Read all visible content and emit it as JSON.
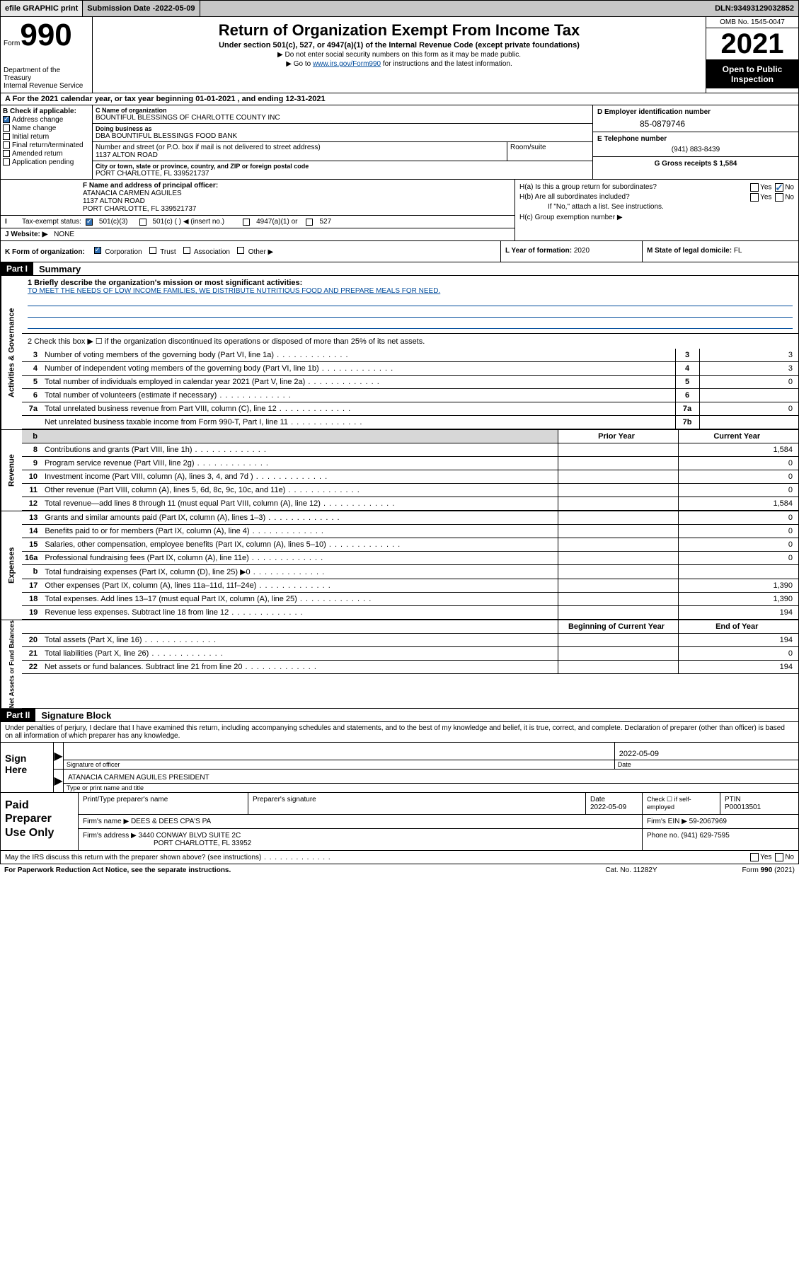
{
  "top": {
    "efile": "efile GRAPHIC print",
    "sub_date_lbl": "Submission Date - ",
    "sub_date": "2022-05-09",
    "dln_lbl": "DLN: ",
    "dln": "93493129032852"
  },
  "header": {
    "form_word": "Form",
    "form_num": "990",
    "title": "Return of Organization Exempt From Income Tax",
    "subtitle": "Under section 501(c), 527, or 4947(a)(1) of the Internal Revenue Code (except private foundations)",
    "hint1": "▶ Do not enter social security numbers on this form as it may be made public.",
    "hint2_pre": "▶ Go to ",
    "hint2_link": "www.irs.gov/Form990",
    "hint2_post": " for instructions and the latest information.",
    "dept1": "Department of the Treasury",
    "dept2": "Internal Revenue Service",
    "omb": "OMB No. 1545-0047",
    "year": "2021",
    "open": "Open to Public Inspection"
  },
  "period": "A For the 2021 calendar year, or tax year beginning 01-01-2021   , and ending 12-31-2021",
  "box_b": {
    "lbl": "B Check if applicable:",
    "items": [
      {
        "label": "Address change",
        "checked": true
      },
      {
        "label": "Name change",
        "checked": false
      },
      {
        "label": "Initial return",
        "checked": false
      },
      {
        "label": "Final return/terminated",
        "checked": false
      },
      {
        "label": "Amended return",
        "checked": false
      },
      {
        "label": "Application pending",
        "checked": false
      }
    ]
  },
  "box_c": {
    "name_lbl": "C Name of organization",
    "name1": "BOUNTIFUL BLESSINGS OF CHARLOTTE COUNTY INC",
    "dba_lbl": "Doing business as",
    "dba": "DBA BOUNTIFUL BLESSINGS FOOD BANK",
    "street_lbl": "Number and street (or P.O. box if mail is not delivered to street address)",
    "street": "1137 ALTON ROAD",
    "room_lbl": "Room/suite",
    "city_lbl": "City or town, state or province, country, and ZIP or foreign postal code",
    "city": "PORT CHARLOTTE, FL  339521737"
  },
  "box_d": {
    "lbl": "D Employer identification number",
    "val": "85-0879746"
  },
  "box_e": {
    "lbl": "E Telephone number",
    "val": "(941) 883-8439"
  },
  "box_g": {
    "lbl": "G Gross receipts $ ",
    "val": "1,584"
  },
  "box_f": {
    "lbl": "F  Name and address of principal officer:",
    "name": "ATANACIA CARMEN AGUILES",
    "addr1": "1137 ALTON ROAD",
    "addr2": "PORT CHARLOTTE, FL  339521737"
  },
  "box_i": {
    "lbl": "Tax-exempt status:",
    "opt1": "501(c)(3)",
    "opt2": "501(c) (   ) ◀ (insert no.)",
    "opt3": "4947(a)(1) or",
    "opt4": "527"
  },
  "box_j": {
    "lbl": "Website: ▶",
    "val": "NONE"
  },
  "box_h": {
    "ha": "H(a)  Is this a group return for subordinates?",
    "hb": "H(b)  Are all subordinates included?",
    "hb2": "If \"No,\" attach a list. See instructions.",
    "hc": "H(c)  Group exemption number ▶",
    "ha_no": true
  },
  "row_k": {
    "lbl": "K Form of organization:",
    "opts": [
      "Corporation",
      "Trust",
      "Association",
      "Other ▶"
    ],
    "checked": 0
  },
  "row_l": {
    "lbl": "L Year of formation: ",
    "val": "2020"
  },
  "row_m": {
    "lbl": "M State of legal domicile: ",
    "val": "FL"
  },
  "part1": {
    "tag": "Part I",
    "title": "Summary"
  },
  "mission": {
    "lbl": "1   Briefly describe the organization's mission or most significant activities:",
    "text": "TO MEET THE NEEDS OF LOW INCOME FAMILIES, WE DISTRIBUTE NUTRITIOUS FOOD AND PREPARE MEALS FOR NEED."
  },
  "check2": "2   Check this box ▶ ☐  if the organization discontinued its operations or disposed of more than 25% of its net assets.",
  "gov_lines": [
    {
      "n": "3",
      "t": "Number of voting members of the governing body (Part VI, line 1a)",
      "box": "3",
      "v": "3"
    },
    {
      "n": "4",
      "t": "Number of independent voting members of the governing body (Part VI, line 1b)",
      "box": "4",
      "v": "3"
    },
    {
      "n": "5",
      "t": "Total number of individuals employed in calendar year 2021 (Part V, line 2a)",
      "box": "5",
      "v": "0"
    },
    {
      "n": "6",
      "t": "Total number of volunteers (estimate if necessary)",
      "box": "6",
      "v": ""
    },
    {
      "n": "7a",
      "t": "Total unrelated business revenue from Part VIII, column (C), line 12",
      "box": "7a",
      "v": "0"
    },
    {
      "n": "",
      "t": "Net unrelated business taxable income from Form 990-T, Part I, line 11",
      "box": "7b",
      "v": ""
    }
  ],
  "yr_hdr": {
    "prior": "Prior Year",
    "current": "Current Year"
  },
  "rev_lines": [
    {
      "n": "8",
      "t": "Contributions and grants (Part VIII, line 1h)",
      "p": "",
      "c": "1,584"
    },
    {
      "n": "9",
      "t": "Program service revenue (Part VIII, line 2g)",
      "p": "",
      "c": "0"
    },
    {
      "n": "10",
      "t": "Investment income (Part VIII, column (A), lines 3, 4, and 7d )",
      "p": "",
      "c": "0"
    },
    {
      "n": "11",
      "t": "Other revenue (Part VIII, column (A), lines 5, 6d, 8c, 9c, 10c, and 11e)",
      "p": "",
      "c": "0"
    },
    {
      "n": "12",
      "t": "Total revenue—add lines 8 through 11 (must equal Part VIII, column (A), line 12)",
      "p": "",
      "c": "1,584"
    }
  ],
  "exp_lines": [
    {
      "n": "13",
      "t": "Grants and similar amounts paid (Part IX, column (A), lines 1–3)",
      "p": "",
      "c": "0"
    },
    {
      "n": "14",
      "t": "Benefits paid to or for members (Part IX, column (A), line 4)",
      "p": "",
      "c": "0"
    },
    {
      "n": "15",
      "t": "Salaries, other compensation, employee benefits (Part IX, column (A), lines 5–10)",
      "p": "",
      "c": "0"
    },
    {
      "n": "16a",
      "t": "Professional fundraising fees (Part IX, column (A), line 11e)",
      "p": "",
      "c": "0"
    },
    {
      "n": "b",
      "t": "Total fundraising expenses (Part IX, column (D), line 25) ▶0",
      "p": "shade",
      "c": "shade"
    },
    {
      "n": "17",
      "t": "Other expenses (Part IX, column (A), lines 11a–11d, 11f–24e)",
      "p": "",
      "c": "1,390"
    },
    {
      "n": "18",
      "t": "Total expenses. Add lines 13–17 (must equal Part IX, column (A), line 25)",
      "p": "",
      "c": "1,390"
    },
    {
      "n": "19",
      "t": "Revenue less expenses. Subtract line 18 from line 12",
      "p": "",
      "c": "194"
    }
  ],
  "na_hdr": {
    "beg": "Beginning of Current Year",
    "end": "End of Year"
  },
  "na_lines": [
    {
      "n": "20",
      "t": "Total assets (Part X, line 16)",
      "p": "",
      "c": "194"
    },
    {
      "n": "21",
      "t": "Total liabilities (Part X, line 26)",
      "p": "",
      "c": "0"
    },
    {
      "n": "22",
      "t": "Net assets or fund balances. Subtract line 21 from line 20",
      "p": "",
      "c": "194"
    }
  ],
  "part2": {
    "tag": "Part II",
    "title": "Signature Block"
  },
  "decl": "Under penalties of perjury, I declare that I have examined this return, including accompanying schedules and statements, and to the best of my knowledge and belief, it is true, correct, and complete. Declaration of preparer (other than officer) is based on all information of which preparer has any knowledge.",
  "sign": {
    "here": "Sign Here",
    "sig_lbl": "Signature of officer",
    "date_lbl": "Date",
    "date": "2022-05-09",
    "name": "ATANACIA CARMEN AGUILES  PRESIDENT",
    "name_lbl": "Type or print name and title"
  },
  "prep": {
    "title": "Paid Preparer Use Only",
    "h1": "Print/Type preparer's name",
    "h2": "Preparer's signature",
    "h3": "Date",
    "date": "2022-05-09",
    "h4": "Check ☐ if self-employed",
    "h5": "PTIN",
    "ptin": "P00013501",
    "firm_lbl": "Firm's name    ▶ ",
    "firm": "DEES & DEES CPA'S PA",
    "ein_lbl": "Firm's EIN ▶ ",
    "ein": "59-2067969",
    "addr_lbl": "Firm's address ▶ ",
    "addr1": "3440 CONWAY BLVD SUITE 2C",
    "addr2": "PORT CHARLOTTE, FL  33952",
    "ph_lbl": "Phone no. ",
    "ph": "(941) 629-7595"
  },
  "discuss": "May the IRS discuss this return with the preparer shown above? (see instructions)",
  "footer": {
    "l": "For Paperwork Reduction Act Notice, see the separate instructions.",
    "m": "Cat. No. 11282Y",
    "r": "Form 990 (2021)"
  },
  "vtabs": {
    "gov": "Activities & Governance",
    "rev": "Revenue",
    "exp": "Expenses",
    "na": "Net Assets or Fund Balances"
  }
}
